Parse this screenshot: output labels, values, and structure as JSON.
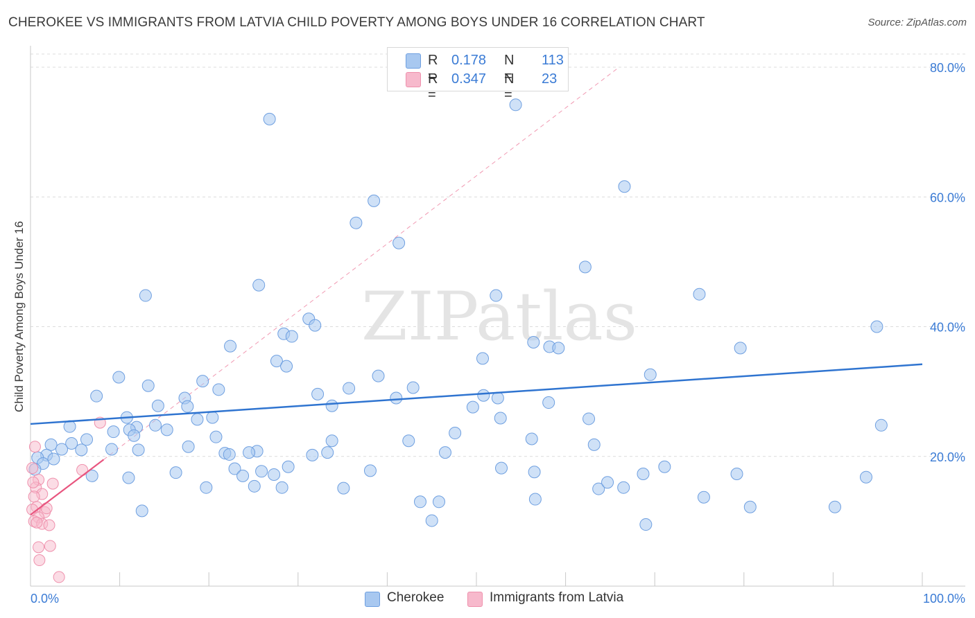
{
  "title": "CHEROKEE VS IMMIGRANTS FROM LATVIA CHILD POVERTY AMONG BOYS UNDER 16 CORRELATION CHART",
  "source": "Source: ZipAtlas.com",
  "watermark": "ZIPatlas",
  "colors": {
    "cherokee_fill": "#a8c8f0",
    "cherokee_stroke": "#6e9fe0",
    "cherokee_line": "#2f74d0",
    "latvia_fill": "#f7b9cc",
    "latvia_stroke": "#ef90ac",
    "latvia_line": "#e8557f",
    "value_text": "#3a7bd5"
  },
  "legend": {
    "rows": [
      {
        "name": "Cherokee",
        "r_label": "R =",
        "r_value": "0.178",
        "n_label": "N =",
        "n_value": "113"
      },
      {
        "name": "Immigrants from Latvia",
        "r_label": "R =",
        "r_value": "0.347",
        "n_label": "N =",
        "n_value": "23"
      }
    ]
  },
  "bottom_legend": {
    "cherokee": "Cherokee",
    "latvia": "Immigrants from Latvia"
  },
  "chart_data": {
    "type": "scatter",
    "title": "CHEROKEE VS IMMIGRANTS FROM LATVIA CHILD POVERTY AMONG BOYS UNDER 16 CORRELATION CHART",
    "xlabel": "",
    "ylabel": "Child Poverty Among Boys Under 16",
    "xlim": [
      0,
      100
    ],
    "ylim": [
      0,
      80
    ],
    "x_tick_labels": [
      {
        "value": 0,
        "label": "0.0%"
      },
      {
        "value": 100,
        "label": "100.0%"
      }
    ],
    "y_tick_labels": [
      {
        "value": 20,
        "label": "20.0%"
      },
      {
        "value": 40,
        "label": "40.0%"
      },
      {
        "value": 60,
        "label": "60.0%"
      },
      {
        "value": 80,
        "label": "80.0%"
      }
    ],
    "series": [
      {
        "name": "Cherokee",
        "points": [
          [
            26.8,
            72.0
          ],
          [
            54.4,
            74.2
          ],
          [
            66.6,
            61.6
          ],
          [
            38.5,
            59.4
          ],
          [
            36.5,
            56.0
          ],
          [
            41.3,
            52.9
          ],
          [
            62.2,
            49.2
          ],
          [
            25.6,
            46.4
          ],
          [
            12.9,
            44.8
          ],
          [
            52.2,
            44.8
          ],
          [
            75.0,
            45.0
          ],
          [
            31.2,
            41.2
          ],
          [
            31.9,
            40.2
          ],
          [
            94.9,
            40.0
          ],
          [
            28.4,
            38.9
          ],
          [
            29.3,
            38.5
          ],
          [
            56.4,
            37.6
          ],
          [
            58.2,
            36.9
          ],
          [
            59.2,
            36.7
          ],
          [
            79.6,
            36.7
          ],
          [
            22.4,
            37.0
          ],
          [
            50.7,
            35.1
          ],
          [
            27.6,
            34.7
          ],
          [
            28.7,
            33.9
          ],
          [
            9.9,
            32.2
          ],
          [
            39.0,
            32.4
          ],
          [
            69.5,
            32.6
          ],
          [
            19.3,
            31.6
          ],
          [
            13.2,
            30.9
          ],
          [
            42.9,
            30.6
          ],
          [
            21.1,
            30.3
          ],
          [
            35.7,
            30.5
          ],
          [
            7.4,
            29.3
          ],
          [
            17.3,
            29.0
          ],
          [
            32.2,
            29.6
          ],
          [
            50.8,
            29.4
          ],
          [
            41.0,
            29.0
          ],
          [
            52.4,
            29.0
          ],
          [
            58.1,
            28.3
          ],
          [
            14.3,
            27.8
          ],
          [
            17.6,
            27.7
          ],
          [
            33.8,
            27.8
          ],
          [
            49.6,
            27.6
          ],
          [
            10.8,
            26.0
          ],
          [
            20.4,
            26.0
          ],
          [
            18.7,
            25.7
          ],
          [
            62.6,
            25.8
          ],
          [
            52.7,
            25.9
          ],
          [
            14.0,
            24.8
          ],
          [
            11.9,
            24.5
          ],
          [
            4.4,
            24.6
          ],
          [
            11.1,
            24.1
          ],
          [
            15.3,
            24.1
          ],
          [
            95.4,
            24.8
          ],
          [
            47.6,
            23.6
          ],
          [
            9.3,
            23.8
          ],
          [
            6.3,
            22.6
          ],
          [
            11.6,
            23.2
          ],
          [
            20.8,
            23.0
          ],
          [
            33.8,
            22.4
          ],
          [
            42.4,
            22.4
          ],
          [
            56.2,
            22.7
          ],
          [
            63.2,
            21.8
          ],
          [
            2.3,
            21.8
          ],
          [
            4.6,
            22.0
          ],
          [
            3.5,
            21.1
          ],
          [
            5.7,
            21.0
          ],
          [
            9.1,
            21.1
          ],
          [
            12.1,
            21.0
          ],
          [
            17.7,
            21.5
          ],
          [
            25.4,
            20.8
          ],
          [
            33.3,
            20.6
          ],
          [
            31.6,
            20.2
          ],
          [
            24.5,
            20.6
          ],
          [
            21.8,
            20.5
          ],
          [
            22.3,
            20.3
          ],
          [
            46.5,
            20.6
          ],
          [
            1.8,
            20.2
          ],
          [
            2.6,
            19.6
          ],
          [
            0.8,
            19.8
          ],
          [
            1.4,
            18.9
          ],
          [
            0.5,
            18.0
          ],
          [
            22.9,
            18.1
          ],
          [
            28.9,
            18.4
          ],
          [
            23.8,
            17.0
          ],
          [
            16.3,
            17.5
          ],
          [
            25.9,
            17.7
          ],
          [
            38.1,
            17.8
          ],
          [
            52.8,
            18.2
          ],
          [
            68.7,
            17.3
          ],
          [
            93.7,
            16.8
          ],
          [
            79.2,
            17.3
          ],
          [
            6.9,
            17.0
          ],
          [
            11.0,
            16.7
          ],
          [
            19.7,
            15.2
          ],
          [
            25.1,
            15.4
          ],
          [
            28.2,
            15.2
          ],
          [
            35.1,
            15.1
          ],
          [
            63.7,
            15.0
          ],
          [
            66.5,
            15.2
          ],
          [
            43.7,
            13.0
          ],
          [
            45.8,
            13.0
          ],
          [
            56.6,
            13.4
          ],
          [
            75.5,
            13.7
          ],
          [
            12.5,
            11.6
          ],
          [
            45.0,
            10.1
          ],
          [
            90.2,
            12.2
          ],
          [
            69.0,
            9.5
          ],
          [
            80.7,
            12.2
          ],
          [
            27.3,
            17.2
          ],
          [
            71.1,
            18.4
          ],
          [
            56.5,
            17.6
          ],
          [
            64.7,
            16.0
          ]
        ]
      },
      {
        "name": "Immigrants from Latvia",
        "points": [
          [
            7.8,
            25.2
          ],
          [
            0.5,
            21.5
          ],
          [
            0.2,
            18.2
          ],
          [
            0.9,
            16.4
          ],
          [
            5.8,
            17.9
          ],
          [
            0.6,
            15.2
          ],
          [
            2.5,
            15.8
          ],
          [
            1.3,
            14.2
          ],
          [
            0.4,
            13.8
          ],
          [
            0.7,
            12.2
          ],
          [
            0.2,
            11.8
          ],
          [
            1.6,
            11.4
          ],
          [
            0.9,
            10.6
          ],
          [
            0.4,
            10.0
          ],
          [
            1.3,
            9.6
          ],
          [
            0.7,
            9.8
          ],
          [
            2.1,
            9.4
          ],
          [
            0.9,
            6.0
          ],
          [
            2.2,
            6.2
          ],
          [
            1.0,
            4.0
          ],
          [
            3.2,
            1.4
          ],
          [
            0.3,
            16.0
          ],
          [
            1.8,
            12.0
          ]
        ]
      }
    ],
    "trendlines": [
      {
        "series": "Cherokee",
        "style": "solid",
        "x": [
          0,
          100
        ],
        "y": [
          25.0,
          34.2
        ]
      },
      {
        "series": "Immigrants from Latvia",
        "style": "solid",
        "x": [
          0,
          8.2
        ],
        "y": [
          11.0,
          19.5
        ]
      },
      {
        "series": "Immigrants from Latvia",
        "style": "dashed",
        "x": [
          8.2,
          66.0
        ],
        "y": [
          19.5,
          80.0
        ]
      }
    ],
    "legend_position": "top-center"
  }
}
